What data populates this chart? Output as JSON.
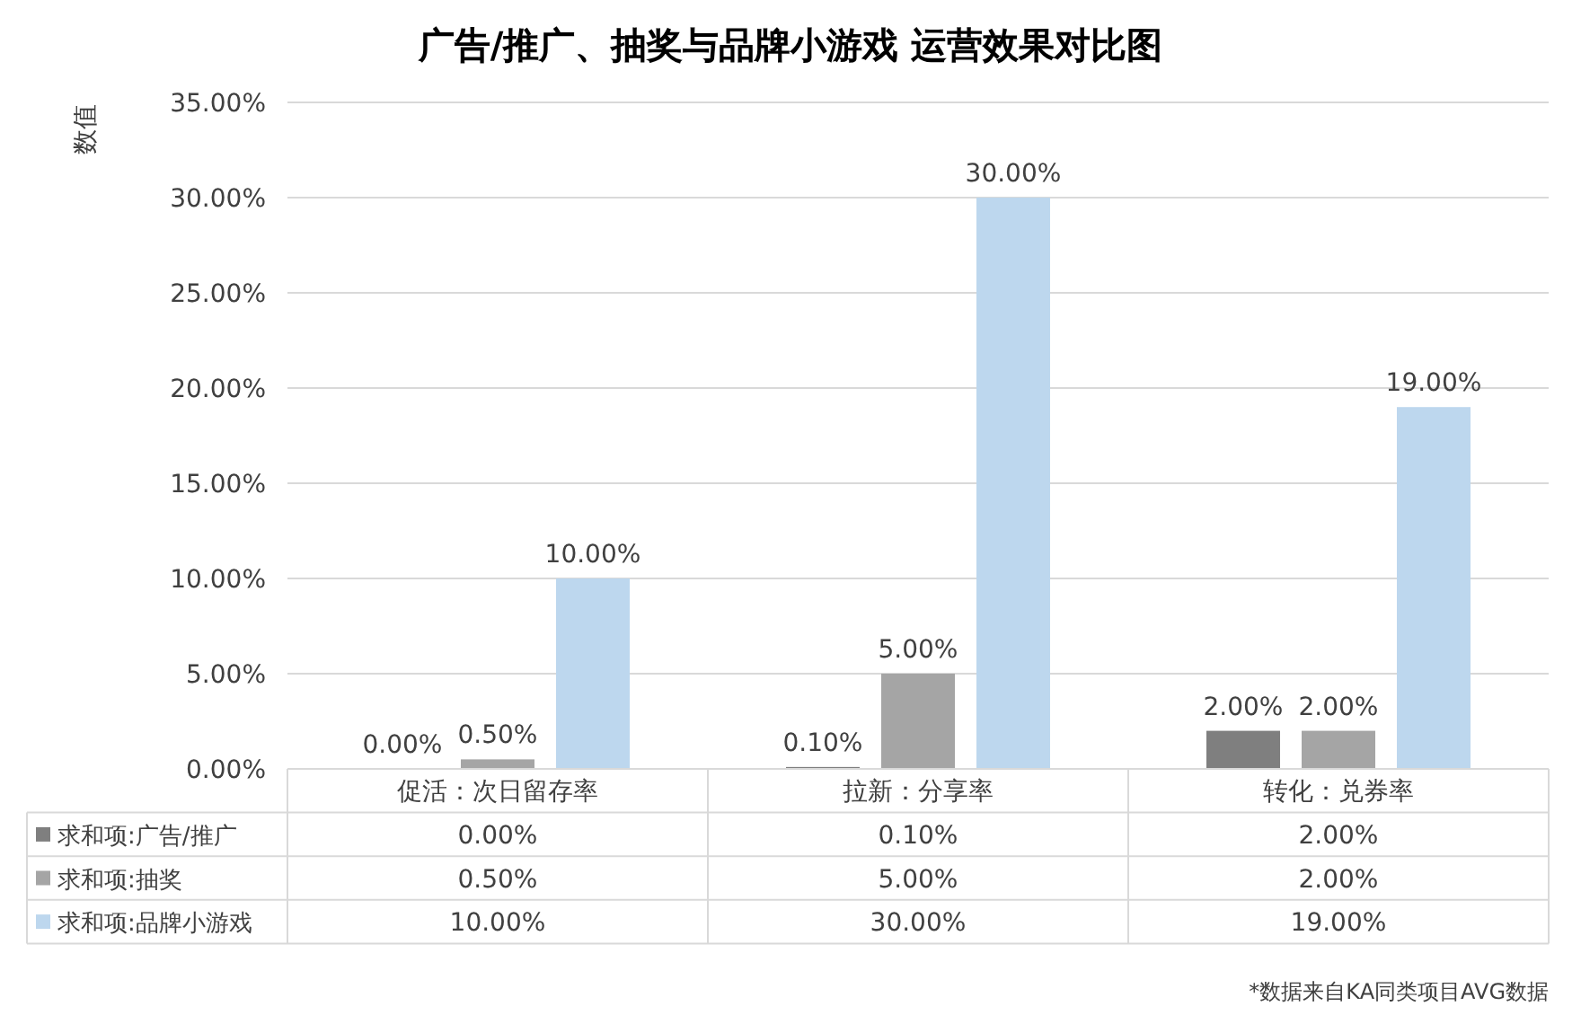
{
  "chart_data": {
    "type": "bar",
    "title": "广告/推广、抽奖与品牌小游戏 运营效果对比图",
    "ylabel": "数值",
    "categories": [
      "促活：次日留存率",
      "拉新：分享率",
      "转化：兑券率"
    ],
    "series": [
      {
        "name": "求和项:广告/推广",
        "color": "#7f7f7f",
        "values": [
          0,
          0.1,
          2
        ],
        "value_labels": [
          "0.00%",
          "0.10%",
          "2.00%"
        ]
      },
      {
        "name": "求和项:抽奖",
        "color": "#a5a5a5",
        "values": [
          0.5,
          5,
          2
        ],
        "value_labels": [
          "0.50%",
          "5.00%",
          "2.00%"
        ]
      },
      {
        "name": "求和项:品牌小游戏",
        "color": "#bdd7ee",
        "values": [
          10,
          30,
          19
        ],
        "value_labels": [
          "10.00%",
          "30.00%",
          "19.00%"
        ]
      }
    ],
    "ylim": [
      0,
      35
    ],
    "yticks": [
      {
        "value": 0,
        "label": "0.00%"
      },
      {
        "value": 5,
        "label": "5.00%"
      },
      {
        "value": 10,
        "label": "10.00%"
      },
      {
        "value": 15,
        "label": "15.00%"
      },
      {
        "value": 20,
        "label": "20.00%"
      },
      {
        "value": 25,
        "label": "25.00%"
      },
      {
        "value": 30,
        "label": "30.00%"
      },
      {
        "value": 35,
        "label": "35.00%"
      }
    ],
    "grid": "y",
    "legend": "bottom",
    "annotations": [
      "*数据来自KA同类项目AVG数据"
    ]
  }
}
